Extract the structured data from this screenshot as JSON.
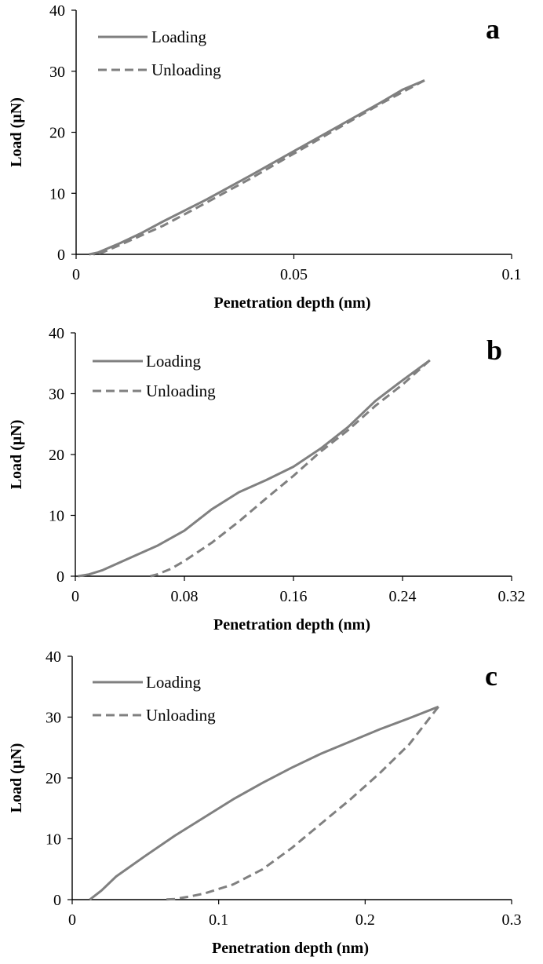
{
  "chart_data": [
    {
      "type": "line",
      "panel_label": "a",
      "xlabel": "Penetration depth  (nm)",
      "ylabel": "Load  (µN)",
      "xlim": [
        0,
        0.1
      ],
      "ylim": [
        0,
        40
      ],
      "xticks": [
        0,
        0.05,
        0.1
      ],
      "xtick_labels": [
        "0",
        "0.05",
        "0.1"
      ],
      "yticks": [
        0,
        10,
        20,
        30,
        40
      ],
      "ytick_labels": [
        "0",
        "10",
        "20",
        "30",
        "40"
      ],
      "grid": false,
      "legend_position": "top-left",
      "series": [
        {
          "name": "Loading",
          "style": "solid",
          "color": "#808080",
          "x": [
            0.003,
            0.005,
            0.01,
            0.015,
            0.02,
            0.03,
            0.04,
            0.05,
            0.06,
            0.07,
            0.075,
            0.08
          ],
          "y": [
            0,
            0.3,
            1.8,
            3.5,
            5.4,
            9.0,
            12.9,
            16.9,
            20.9,
            24.9,
            27.0,
            28.5
          ]
        },
        {
          "name": "Unloading",
          "style": "dashed",
          "color": "#808080",
          "x": [
            0.08,
            0.075,
            0.07,
            0.06,
            0.05,
            0.04,
            0.03,
            0.02,
            0.01,
            0.006,
            0.004
          ],
          "y": [
            28.5,
            26.6,
            24.7,
            20.6,
            16.5,
            12.4,
            8.5,
            4.7,
            1.5,
            0.3,
            0
          ]
        }
      ]
    },
    {
      "type": "line",
      "panel_label": "b",
      "xlabel": "Penetration depth  (nm)",
      "ylabel": "Load  (µN)",
      "xlim": [
        0,
        0.32
      ],
      "ylim": [
        0,
        40
      ],
      "xticks": [
        0,
        0.08,
        0.16,
        0.24,
        0.32
      ],
      "xtick_labels": [
        "0",
        "0.08",
        "0.16",
        "0.24",
        "0.32"
      ],
      "yticks": [
        0,
        10,
        20,
        30,
        40
      ],
      "ytick_labels": [
        "0",
        "10",
        "20",
        "30",
        "40"
      ],
      "grid": false,
      "legend_position": "top-left",
      "series": [
        {
          "name": "Loading",
          "style": "solid",
          "color": "#808080",
          "x": [
            0.002,
            0.01,
            0.02,
            0.04,
            0.06,
            0.08,
            0.1,
            0.12,
            0.14,
            0.16,
            0.18,
            0.2,
            0.22,
            0.24,
            0.26
          ],
          "y": [
            0,
            0.3,
            1.0,
            3.0,
            5.0,
            7.5,
            11.0,
            13.8,
            15.8,
            18.0,
            21.0,
            24.5,
            28.8,
            32.2,
            35.5
          ]
        },
        {
          "name": "Unloading",
          "style": "dashed",
          "color": "#808080",
          "x": [
            0.26,
            0.24,
            0.22,
            0.2,
            0.18,
            0.16,
            0.14,
            0.12,
            0.1,
            0.08,
            0.07,
            0.06,
            0.055
          ],
          "y": [
            35.5,
            31.5,
            28.0,
            24.0,
            20.5,
            16.5,
            12.8,
            9.0,
            5.5,
            2.5,
            1.2,
            0.3,
            0
          ]
        }
      ]
    },
    {
      "type": "line",
      "panel_label": "c",
      "xlabel": "Penetration depth  (nm)",
      "ylabel": "Load  (µN)",
      "xlim": [
        0,
        0.3
      ],
      "ylim": [
        0,
        40
      ],
      "xticks": [
        0,
        0.1,
        0.2,
        0.3
      ],
      "xtick_labels": [
        "0",
        "0.1",
        "0.2",
        "0.3"
      ],
      "yticks": [
        0,
        10,
        20,
        30,
        40
      ],
      "ytick_labels": [
        "0",
        "10",
        "20",
        "30",
        "40"
      ],
      "grid": false,
      "legend_position": "top-left",
      "series": [
        {
          "name": "Loading",
          "style": "solid",
          "color": "#808080",
          "x": [
            0.012,
            0.02,
            0.03,
            0.05,
            0.07,
            0.09,
            0.11,
            0.13,
            0.15,
            0.17,
            0.19,
            0.21,
            0.23,
            0.25
          ],
          "y": [
            0,
            1.5,
            3.8,
            7.2,
            10.5,
            13.5,
            16.5,
            19.2,
            21.7,
            24.0,
            26.0,
            28.0,
            29.8,
            31.7
          ]
        },
        {
          "name": "Unloading",
          "style": "dashed",
          "color": "#808080",
          "x": [
            0.25,
            0.23,
            0.21,
            0.19,
            0.17,
            0.15,
            0.13,
            0.11,
            0.09,
            0.08,
            0.07,
            0.062
          ],
          "y": [
            31.7,
            25.5,
            20.8,
            16.5,
            12.5,
            8.5,
            5.0,
            2.5,
            1.0,
            0.5,
            0.1,
            0
          ]
        }
      ]
    }
  ]
}
